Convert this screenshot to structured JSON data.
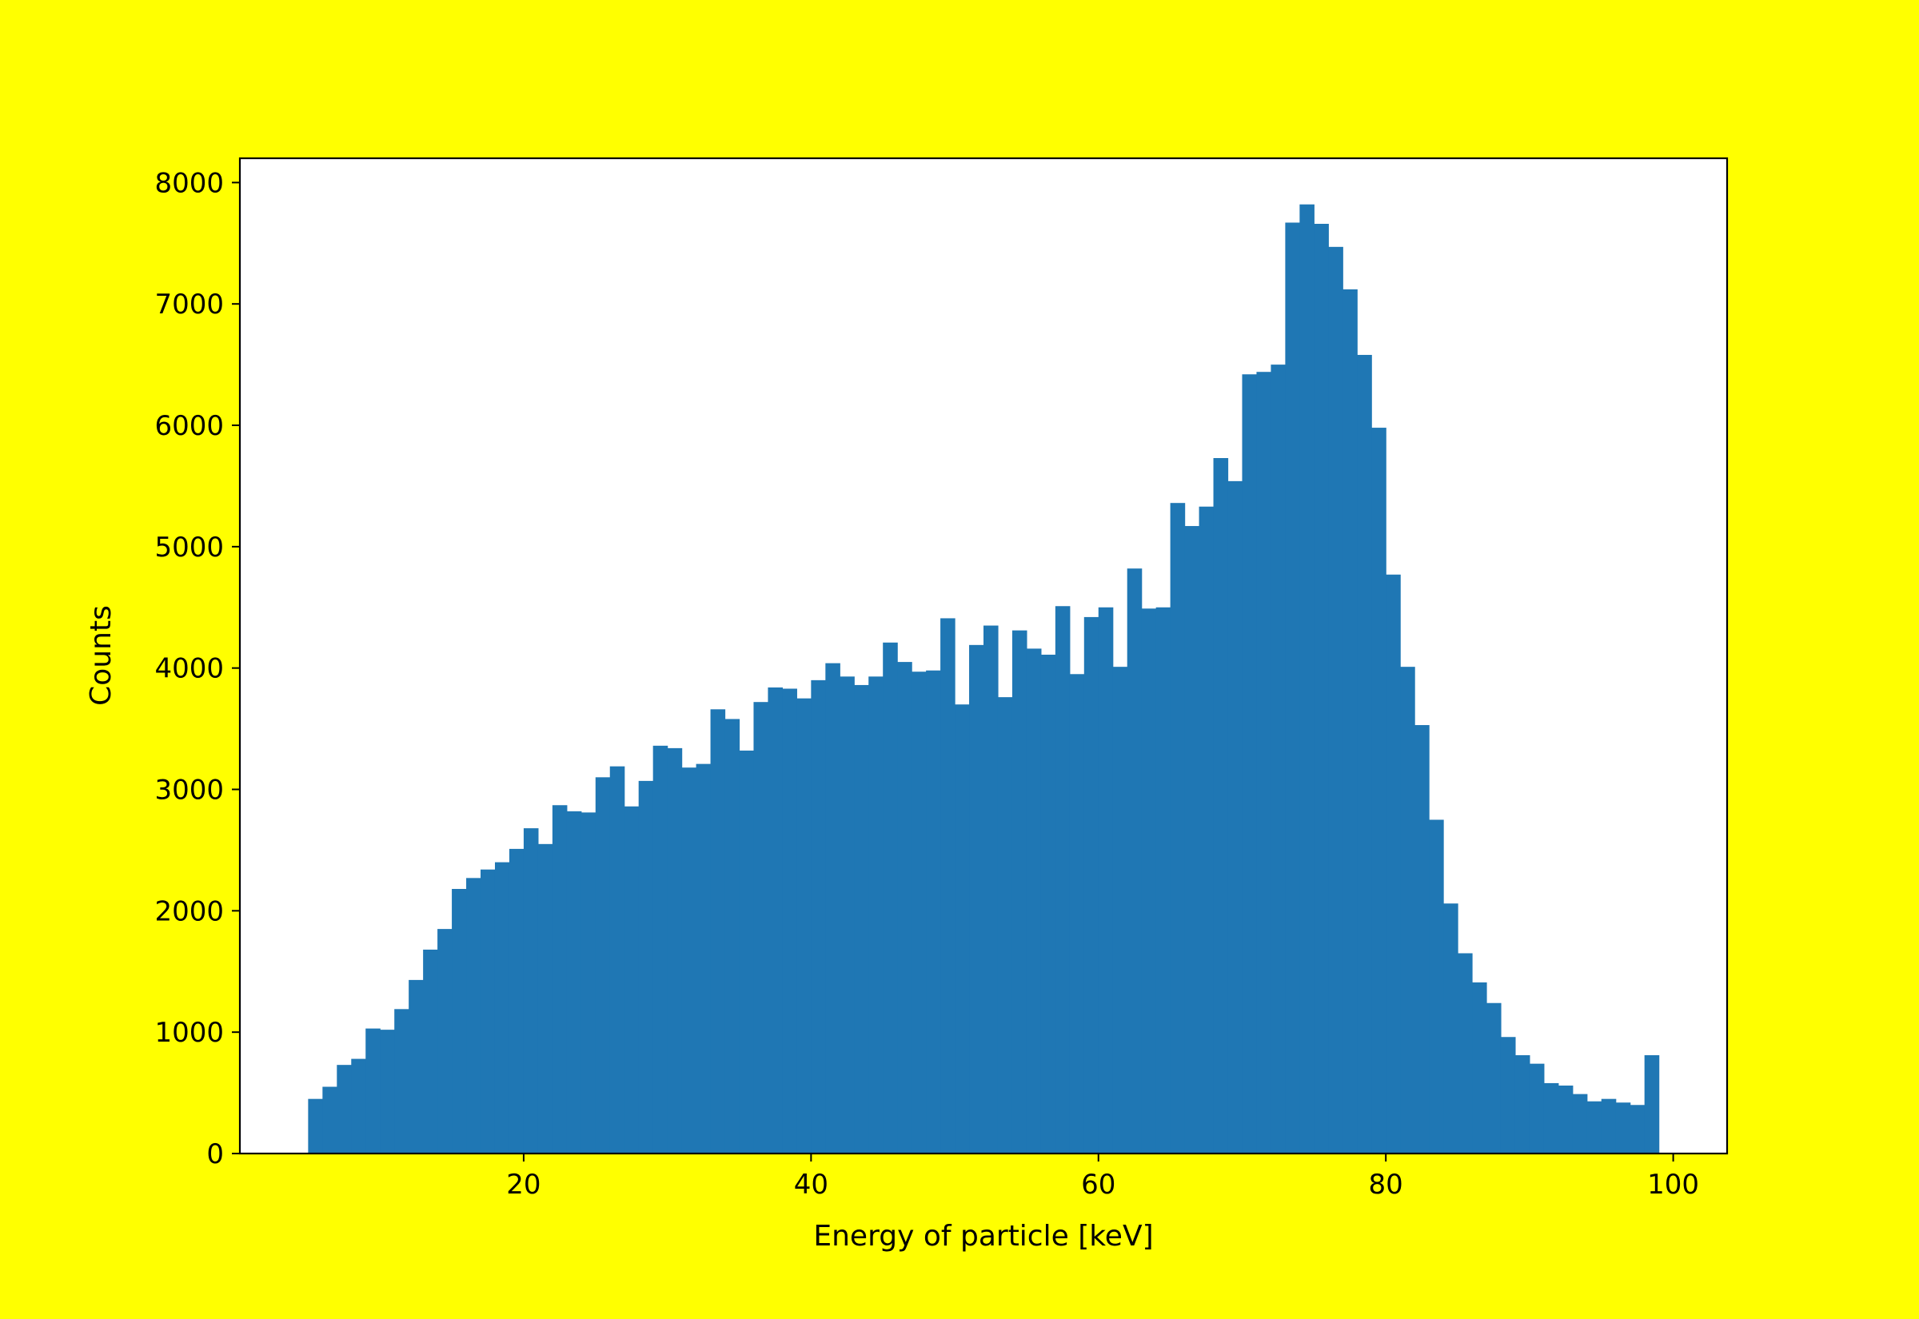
{
  "figure": {
    "background": "#ffff00",
    "plot_background": "#ffffff"
  },
  "chart_data": {
    "type": "bar",
    "xlabel": "Energy of particle [keV]",
    "ylabel": "Counts",
    "color": "#1f77b4",
    "xlim": [
      0.25,
      103.75
    ],
    "ylim": [
      0,
      8200
    ],
    "grid": false,
    "xticks": [
      20,
      40,
      60,
      80,
      100
    ],
    "yticks": [
      0,
      1000,
      2000,
      3000,
      4000,
      5000,
      6000,
      7000,
      8000
    ],
    "bin_start": 5,
    "bin_width": 1,
    "values": [
      450,
      550,
      730,
      780,
      1030,
      1020,
      1190,
      1430,
      1680,
      1850,
      2180,
      2270,
      2340,
      2400,
      2510,
      2680,
      2550,
      2870,
      2820,
      2810,
      3100,
      3190,
      2860,
      3070,
      3360,
      3340,
      3180,
      3210,
      3660,
      3580,
      3320,
      3720,
      3840,
      3830,
      3750,
      3900,
      4040,
      3930,
      3860,
      3930,
      4210,
      4050,
      3970,
      3980,
      4410,
      3700,
      4190,
      4350,
      3760,
      4310,
      4160,
      4110,
      4510,
      3950,
      4420,
      4500,
      4010,
      4820,
      4490,
      4500,
      5360,
      5170,
      5330,
      5730,
      5540,
      6420,
      6440,
      6500,
      7670,
      7820,
      7660,
      7470,
      7120,
      6580,
      5980,
      4770,
      4010,
      3530,
      2750,
      2060,
      1650,
      1410,
      1240,
      960,
      810,
      740,
      580,
      560,
      490,
      430,
      450,
      420,
      400,
      810
    ]
  }
}
